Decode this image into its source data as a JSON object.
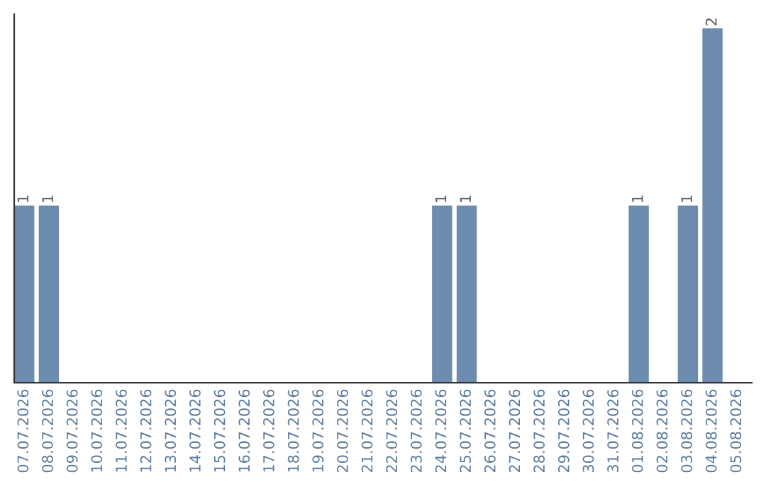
{
  "chart_data": {
    "type": "bar",
    "categories": [
      "07.07.2026",
      "08.07.2026",
      "09.07.2026",
      "10.07.2026",
      "11.07.2026",
      "12.07.2026",
      "13.07.2026",
      "14.07.2026",
      "15.07.2026",
      "16.07.2026",
      "17.07.2026",
      "18.07.2026",
      "19.07.2026",
      "20.07.2026",
      "21.07.2026",
      "22.07.2026",
      "23.07.2026",
      "24.07.2026",
      "25.07.2026",
      "26.07.2026",
      "27.07.2026",
      "28.07.2026",
      "29.07.2026",
      "30.07.2026",
      "31.07.2026",
      "01.08.2026",
      "02.08.2026",
      "03.08.2026",
      "04.08.2026",
      "05.08.2026"
    ],
    "values": [
      1,
      1,
      0,
      0,
      0,
      0,
      0,
      0,
      0,
      0,
      0,
      0,
      0,
      0,
      0,
      0,
      0,
      1,
      1,
      0,
      0,
      0,
      0,
      0,
      0,
      1,
      0,
      1,
      2,
      0
    ],
    "value_labels": [
      "1",
      "1",
      null,
      null,
      null,
      null,
      null,
      null,
      null,
      null,
      null,
      null,
      null,
      null,
      null,
      null,
      null,
      "1",
      "1",
      null,
      null,
      null,
      null,
      null,
      null,
      "1",
      null,
      "1",
      "2",
      null
    ],
    "color": "#6b8cae",
    "ylim": [
      0,
      2.08
    ],
    "tick_labels": "x",
    "grid": false,
    "legend": false
  }
}
